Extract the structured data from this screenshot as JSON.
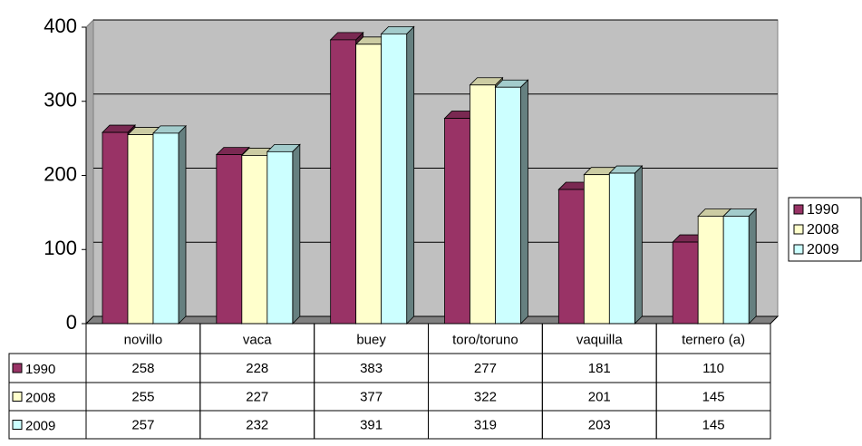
{
  "chart_data": {
    "type": "bar3d",
    "categories": [
      "novillo",
      "vaca",
      "buey",
      "toro/toruno",
      "vaquilla",
      "ternero (a)"
    ],
    "series": [
      {
        "name": "1990",
        "color": "#993366",
        "values": [
          258,
          228,
          383,
          277,
          181,
          110
        ]
      },
      {
        "name": "2008",
        "color": "#FFFFCC",
        "values": [
          255,
          227,
          377,
          322,
          201,
          145
        ]
      },
      {
        "name": "2009",
        "color": "#CCFFFF",
        "values": [
          257,
          232,
          391,
          319,
          203,
          145
        ]
      }
    ],
    "ylim": [
      0,
      400
    ],
    "yticks": [
      0,
      100,
      200,
      300,
      400
    ],
    "grid": true,
    "legend": "right",
    "data_table": true
  }
}
